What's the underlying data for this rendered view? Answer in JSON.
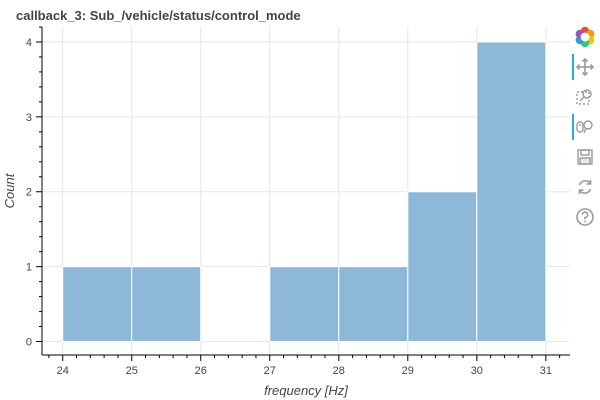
{
  "chart_data": {
    "type": "bar",
    "title": "callback_3: Sub_/vehicle/status/control_mode",
    "xlabel": "frequency [Hz]",
    "ylabel": "Count",
    "bins": [
      {
        "x0": 24,
        "x1": 25,
        "count": 1
      },
      {
        "x0": 25,
        "x1": 26,
        "count": 1
      },
      {
        "x0": 26,
        "x1": 27,
        "count": 0
      },
      {
        "x0": 27,
        "x1": 28,
        "count": 1
      },
      {
        "x0": 28,
        "x1": 29,
        "count": 1
      },
      {
        "x0": 29,
        "x1": 30,
        "count": 2
      },
      {
        "x0": 30,
        "x1": 31,
        "count": 4
      }
    ],
    "xlim": [
      23.7,
      31.35
    ],
    "ylim": [
      -0.18,
      4.2
    ],
    "x_ticks": [
      24,
      25,
      26,
      27,
      28,
      29,
      30,
      31
    ],
    "y_ticks": [
      0,
      1,
      2,
      3,
      4
    ],
    "grid": true,
    "bar_color": "#8db8d8",
    "bar_edge_color": "#ffffff"
  },
  "toolbar": {
    "tools": [
      {
        "icon": "bokeh-logo-icon",
        "active": false
      },
      {
        "icon": "pan-icon",
        "active": true
      },
      {
        "icon": "box-zoom-icon",
        "active": false
      },
      {
        "icon": "wheel-zoom-icon",
        "active": true
      },
      {
        "icon": "save-icon",
        "active": false
      },
      {
        "icon": "reset-icon",
        "active": false
      },
      {
        "icon": "help-icon",
        "active": false
      }
    ]
  }
}
